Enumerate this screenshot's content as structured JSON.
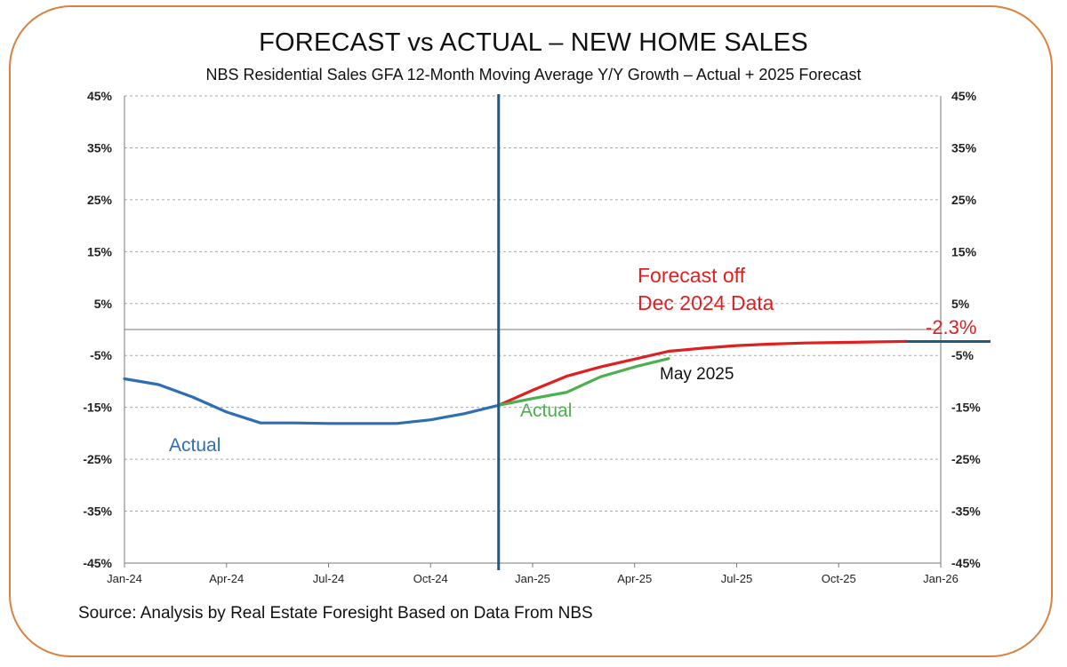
{
  "title": "FORECAST vs ACTUAL – NEW HOME SALES",
  "subtitle": "NBS Residential Sales GFA 12-Month Moving Average Y/Y Growth – Actual + 2025 Forecast",
  "source": "Source: Analysis by Real Estate Foresight Based on Data From NBS",
  "colors": {
    "frame": "#d9823f",
    "actual": "#2e6eb5",
    "forecast": "#e02020",
    "actual2025": "#4caf50",
    "divider": "#1f5a82",
    "endline": "#1f5a82"
  },
  "chart_data": {
    "type": "line",
    "x_type": "month_index",
    "x_start": "Jan-24",
    "xlim": [
      0,
      24
    ],
    "ylim": [
      -45,
      45
    ],
    "y_ticks": [
      45,
      35,
      25,
      15,
      5,
      -5,
      -15,
      -25,
      -35,
      -45
    ],
    "y_tick_labels": [
      "45%",
      "35%",
      "25%",
      "15%",
      "5%",
      "-5%",
      "-15%",
      "-25%",
      "-35%",
      "-45%"
    ],
    "x_ticks": [
      0,
      3,
      6,
      9,
      12,
      15,
      18,
      21,
      24
    ],
    "x_tick_labels": [
      "Jan-24",
      "Apr-24",
      "Jul-24",
      "Oct-24",
      "Jan-25",
      "Apr-25",
      "Jul-25",
      "Oct-25",
      "Jan-26"
    ],
    "vertical_line_x": 11,
    "series": [
      {
        "name": "Actual",
        "color": "#2e6eb5",
        "x": [
          0,
          1,
          2,
          3,
          4,
          5,
          6,
          7,
          8,
          9,
          10,
          11
        ],
        "values": [
          -9.5,
          -10.6,
          -13.0,
          -15.9,
          -18.0,
          -18.0,
          -18.1,
          -18.1,
          -18.1,
          -17.4,
          -16.2,
          -14.6
        ]
      },
      {
        "name": "Forecast",
        "color": "#e02020",
        "x": [
          11,
          12,
          13,
          14,
          15,
          16,
          17,
          18,
          19,
          20,
          21,
          22,
          23
        ],
        "values": [
          -14.6,
          -11.7,
          -9.0,
          -7.2,
          -5.7,
          -4.2,
          -3.6,
          -3.1,
          -2.8,
          -2.6,
          -2.5,
          -2.4,
          -2.3
        ]
      },
      {
        "name": "Actual 2025",
        "color": "#4caf50",
        "x": [
          11,
          12,
          13,
          14,
          15,
          16
        ],
        "values": [
          -14.6,
          -13.3,
          -12.1,
          -9.1,
          -7.2,
          -5.6
        ]
      }
    ],
    "end_marker": {
      "x_from": 23,
      "x_to": 24,
      "value": -2.3
    },
    "annotations": {
      "actual_label": "Actual",
      "actual2025_label": "Actual",
      "may_label": "May 2025",
      "forecast_line1": "Forecast off",
      "forecast_line2": "Dec 2024 Data",
      "end_value_label": "-2.3%"
    }
  }
}
